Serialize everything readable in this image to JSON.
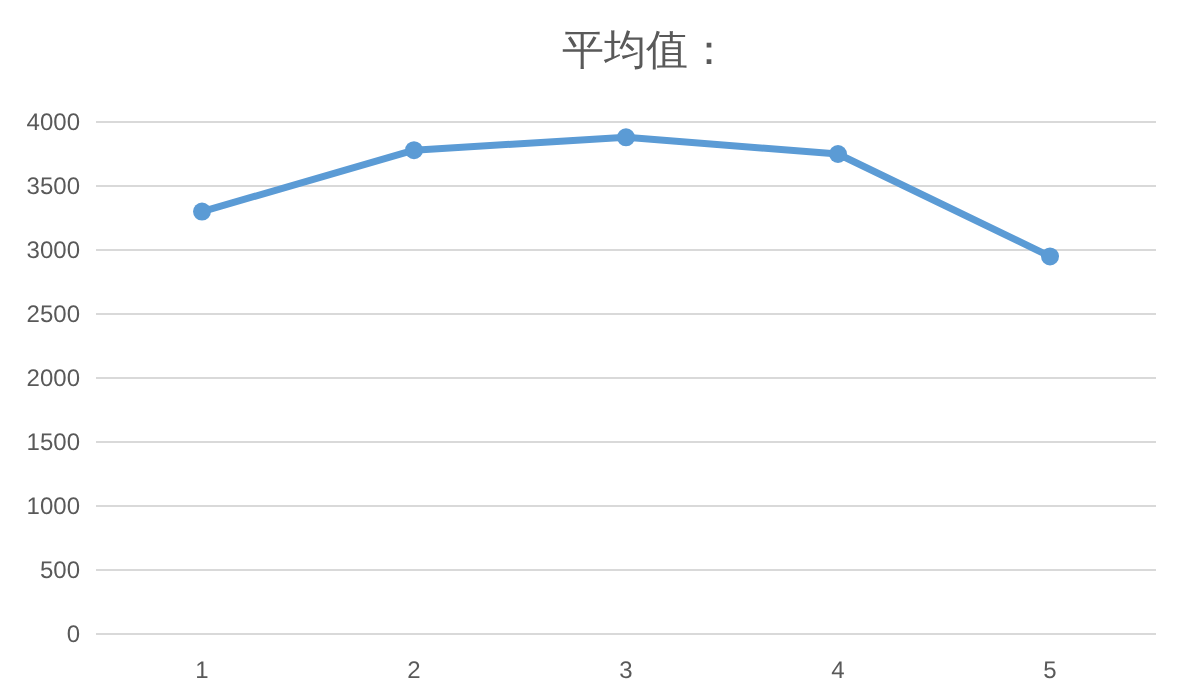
{
  "chart_data": {
    "type": "line",
    "title": "平均值：",
    "categories": [
      "1",
      "2",
      "3",
      "4",
      "5"
    ],
    "series": [
      {
        "color": "#5b9bd5",
        "values": [
          3300,
          3780,
          3880,
          3750,
          2950
        ]
      }
    ],
    "ylim": [
      0,
      4000
    ],
    "yticks": [
      0,
      500,
      1000,
      1500,
      2000,
      2500,
      3000,
      3500,
      4000
    ],
    "grid": "y",
    "marker": "circle",
    "line_style": "solid"
  }
}
